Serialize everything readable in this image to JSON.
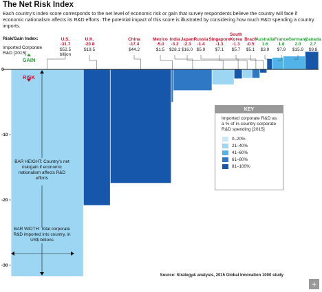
{
  "chart_data": {
    "type": "variwide-bar",
    "title": "The Net Risk Index",
    "subtitle": "Each country’s index score corresponds to the net level of economic risk or gain that survey respondents believe the country will face if economic nationalism affects its R&D efforts. The potential impact of this score is illustrated by considering how much R&D spending a country imports.",
    "value_title": "Risk/Gain Index:",
    "width_title": "Imported Corporate R&D [2015]:",
    "categories": [
      "U.S.",
      "U.K.",
      "China",
      "Mexico",
      "India",
      "Japan",
      "Russia",
      "Singapore",
      "South Korea",
      "Brazil",
      "Australia",
      "France",
      "Germany",
      "Canada"
    ],
    "values": [
      -31.7,
      -20.8,
      -17.4,
      -5.0,
      -3.2,
      -2.3,
      -1.4,
      -1.3,
      -1.3,
      -0.5,
      1.6,
      1.8,
      2.0,
      2.7
    ],
    "value_labels": [
      "-31.7",
      "-20.8",
      "-17.4",
      "-5.0",
      "-3.2",
      "-2.3",
      "-1.4",
      "-1.3",
      "-1.3",
      "-0.5",
      "1.6",
      "1.8",
      "2.0",
      "2.7"
    ],
    "widths": [
      52.5,
      19.5,
      44.2,
      1.5,
      28.1,
      16.0,
      5.9,
      7.1,
      5.7,
      5.1,
      3.9,
      7.9,
      15.9,
      9.8
    ],
    "width_labels": [
      "$52.5 billion",
      "$19.5",
      "$44.2",
      "$1.5",
      "$28.1",
      "$16.0",
      "$5.9",
      "$7.1",
      "$5.7",
      "$5.1",
      "$3.9",
      "$7.9",
      "$15.9",
      "$9.8"
    ],
    "colors": [
      "#9dd6f2",
      "#1656ab",
      "#1656ab",
      "#2f78c6",
      "#2f78c6",
      "#9dd6f2",
      "#1656ab",
      "#9dd6f2",
      "#2f78c6",
      "#1656ab",
      "#1656ab",
      "#52b3e8",
      "#52b3e8",
      "#1656ab"
    ],
    "ylim": [
      -33,
      3
    ],
    "yticks": [
      0,
      -10,
      -20,
      -30
    ],
    "gain_label": "GAIN",
    "risk_label": "RISK",
    "height_note": "BAR HEIGHT: Country’s net risk/gain if economic nationalism affects R&D efforts",
    "width_note": "BAR WIDTH: Total corporate R&D imported into country, in US$ billions",
    "source": "Source: Strategy& analysis, 2015 Global Innovation 1000 study",
    "legend": {
      "title": "KEY",
      "description": "Imported corporate R&D as a % of in-country corporate R&D spending [2015]",
      "items": [
        {
          "label": "0–20%",
          "color": "#c9eaf8"
        },
        {
          "label": "21–40%",
          "color": "#9dd6f2"
        },
        {
          "label": "41–60%",
          "color": "#52b3e8"
        },
        {
          "label": "61–80%",
          "color": "#2f78c6"
        },
        {
          "label": "81–100%",
          "color": "#1656ab"
        }
      ]
    }
  }
}
